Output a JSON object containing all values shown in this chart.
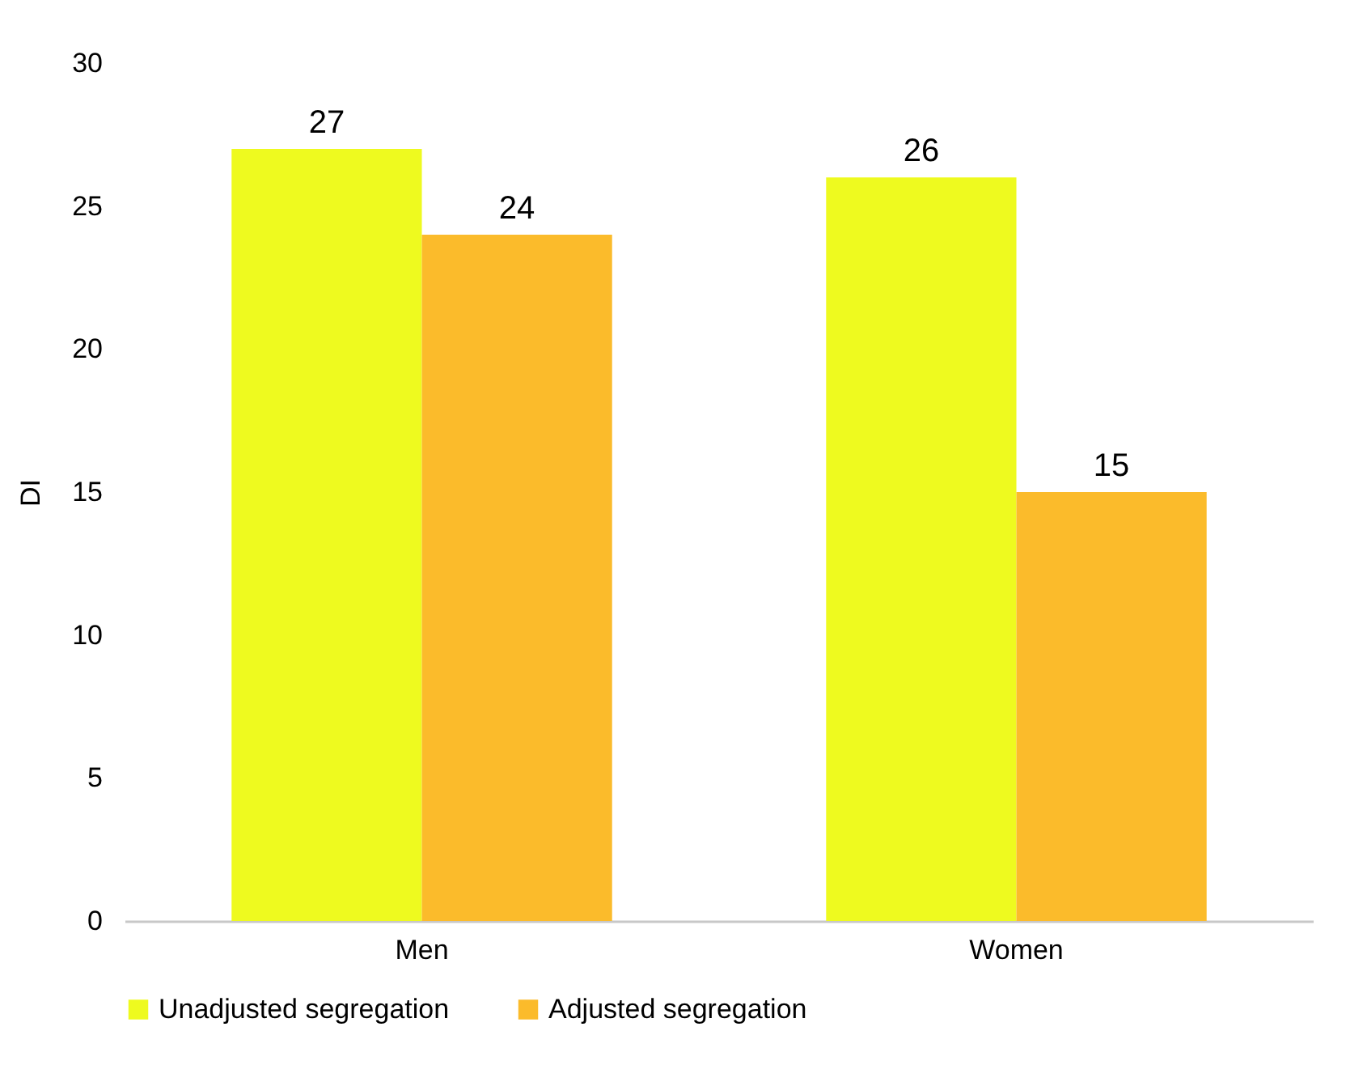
{
  "chart_data": {
    "type": "bar",
    "ylabel": "DI",
    "categories": [
      "Men",
      "Women"
    ],
    "series": [
      {
        "name": "Unadjusted segregation",
        "color": "#eefa1f",
        "values": [
          27,
          26
        ]
      },
      {
        "name": "Adjusted segregation",
        "color": "#fbbb2b",
        "values": [
          24,
          15
        ]
      }
    ],
    "ylim": [
      0,
      30
    ],
    "yticks": [
      0,
      5,
      10,
      15,
      20,
      25,
      30
    ],
    "grid": false,
    "legend": "bottom",
    "data_labels": true
  }
}
